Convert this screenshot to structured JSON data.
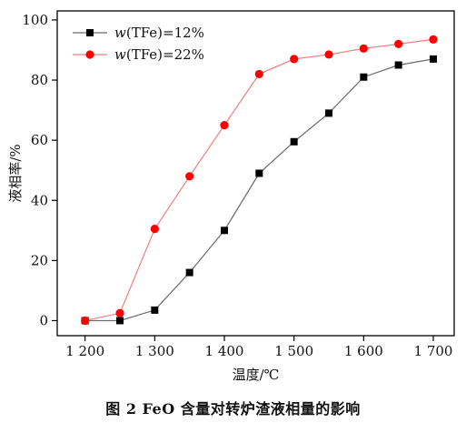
{
  "caption": "图 2   FeO 含量对转炉渣液相量的影响",
  "chart_data": {
    "type": "line",
    "xlabel": "温度/℃",
    "ylabel": "液相率/%",
    "xlim": [
      1160,
      1730
    ],
    "ylim": [
      -5,
      103
    ],
    "xticks": [
      1200,
      1300,
      1400,
      1500,
      1600,
      1700
    ],
    "xtick_labels": [
      "1 200",
      "1 300",
      "1 400",
      "1 500",
      "1 600",
      "1 700"
    ],
    "yticks": [
      0,
      20,
      40,
      60,
      80,
      100
    ],
    "ytick_labels": [
      "0",
      "20",
      "40",
      "60",
      "80",
      "100"
    ],
    "grid": false,
    "legend_position": "top-left",
    "x": [
      1200,
      1250,
      1300,
      1350,
      1400,
      1450,
      1500,
      1550,
      1600,
      1650,
      1700
    ],
    "series": [
      {
        "name": "w(TFe)=12%",
        "legend_italic": "w",
        "legend_rest": "(TFe)=12%",
        "marker": "square",
        "color": "#000000",
        "line_color": "#6a6a6a",
        "values": [
          0,
          0,
          3.5,
          16,
          30,
          49,
          59.5,
          69,
          81,
          85,
          87
        ]
      },
      {
        "name": "w(TFe)=22%",
        "legend_italic": "w",
        "legend_rest": "(TFe)=22%",
        "marker": "circle",
        "color": "#ff0000",
        "line_color": "#f08080",
        "values": [
          0,
          2.5,
          30.5,
          48,
          65,
          82,
          87,
          88.5,
          90.5,
          92,
          93.5
        ]
      }
    ]
  }
}
